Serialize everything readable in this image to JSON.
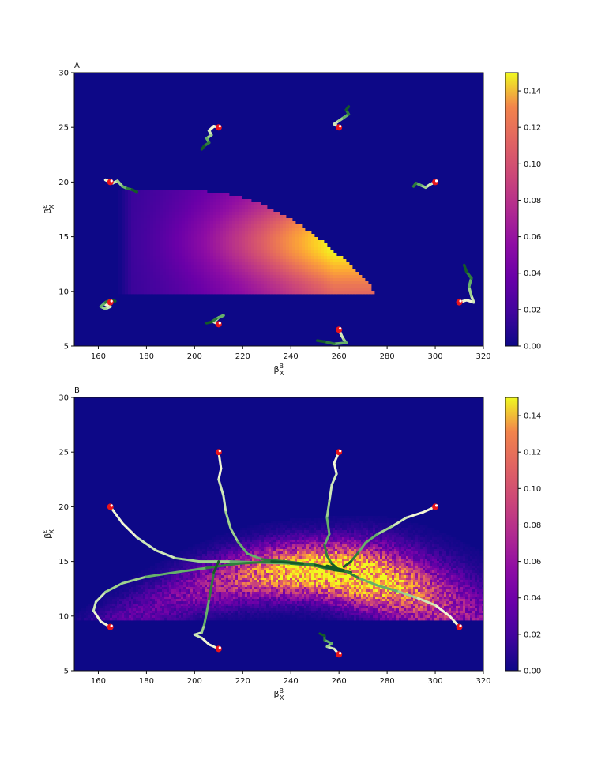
{
  "chart_data": [
    {
      "type": "heatmap",
      "panel_label": "A",
      "title": "",
      "xlabel": "β_X^B",
      "ylabel": "β_X^ε",
      "xlim": [
        150,
        320
      ],
      "ylim": [
        5,
        30
      ],
      "xticks": [
        160,
        180,
        200,
        220,
        240,
        260,
        280,
        300,
        320
      ],
      "yticks": [
        5,
        10,
        15,
        20,
        25,
        30
      ],
      "colorbar": {
        "min": 0.0,
        "max": 0.15,
        "ticks": [
          "0.00",
          "0.02",
          "0.04",
          "0.06",
          "0.08",
          "0.10",
          "0.12",
          "0.14"
        ],
        "colormap": "plasma"
      },
      "density_region": {
        "x_min": 168,
        "x_max": 276,
        "y_min": 9.7,
        "y_max": 19.2,
        "peak": [
          255,
          14.5
        ],
        "peak_value": 0.15
      },
      "trajectories": [
        {
          "start": [
            165,
            20
          ],
          "path": [
            [
              165,
              20
            ],
            [
              163,
              20.2
            ],
            [
              166,
              19.9
            ],
            [
              168,
              20.1
            ],
            [
              170,
              19.6
            ],
            [
              172,
              19.4
            ],
            [
              174,
              19.3
            ],
            [
              176,
              19.1
            ]
          ]
        },
        {
          "start": [
            210,
            25
          ],
          "path": [
            [
              210,
              25
            ],
            [
              208,
              25.1
            ],
            [
              206,
              24.7
            ],
            [
              207,
              24.3
            ],
            [
              205,
              24.0
            ],
            [
              206,
              23.6
            ],
            [
              204,
              23.3
            ],
            [
              203,
              23.0
            ]
          ]
        },
        {
          "start": [
            260,
            25
          ],
          "path": [
            [
              260,
              25
            ],
            [
              258,
              25.3
            ],
            [
              260,
              25.6
            ],
            [
              262,
              25.9
            ],
            [
              264,
              26.2
            ],
            [
              263,
              26.6
            ],
            [
              264,
              26.9
            ]
          ]
        },
        {
          "start": [
            300,
            20
          ],
          "path": [
            [
              300,
              20
            ],
            [
              298,
              19.8
            ],
            [
              296,
              19.5
            ],
            [
              294,
              19.7
            ],
            [
              292,
              19.9
            ],
            [
              291,
              19.6
            ]
          ]
        },
        {
          "start": [
            310,
            9
          ],
          "path": [
            [
              310,
              9
            ],
            [
              313,
              9.2
            ],
            [
              316,
              9.0
            ],
            [
              315,
              9.6
            ],
            [
              314,
              10.4
            ],
            [
              315,
              11.2
            ],
            [
              313,
              11.8
            ],
            [
              312,
              12.4
            ]
          ]
        },
        {
          "start": [
            260,
            6.5
          ],
          "path": [
            [
              260,
              6.5
            ],
            [
              261,
              6.0
            ],
            [
              262,
              5.6
            ],
            [
              263,
              5.3
            ],
            [
              258,
              5.2
            ],
            [
              254,
              5.4
            ],
            [
              251,
              5.5
            ]
          ]
        },
        {
          "start": [
            210,
            7
          ],
          "path": [
            [
              210,
              7
            ],
            [
              208,
              7.2
            ],
            [
              210,
              7.6
            ],
            [
              212,
              7.8
            ],
            [
              209,
              7.5
            ],
            [
              207,
              7.2
            ],
            [
              205,
              7.1
            ]
          ]
        },
        {
          "start": [
            165,
            9
          ],
          "path": [
            [
              165,
              9
            ],
            [
              163,
              8.8
            ],
            [
              165,
              8.6
            ],
            [
              163,
              8.4
            ],
            [
              161,
              8.6
            ],
            [
              163,
              9.0
            ],
            [
              165,
              9.2
            ],
            [
              167,
              9.1
            ]
          ]
        }
      ]
    },
    {
      "type": "heatmap",
      "panel_label": "B",
      "title": "",
      "xlabel": "β_X^B",
      "ylabel": "β_X^ε",
      "xlim": [
        150,
        320
      ],
      "ylim": [
        5,
        30
      ],
      "xticks": [
        160,
        180,
        200,
        220,
        240,
        260,
        280,
        300,
        320
      ],
      "yticks": [
        5,
        10,
        15,
        20,
        25,
        30
      ],
      "colorbar": {
        "min": 0.0,
        "max": 0.15,
        "ticks": [
          "0.00",
          "0.02",
          "0.04",
          "0.06",
          "0.08",
          "0.10",
          "0.12",
          "0.14"
        ],
        "colormap": "plasma"
      },
      "density_region": {
        "x_min": 150,
        "x_max": 320,
        "y_min": 9.7,
        "y_max": 20,
        "peak": [
          255,
          13.8
        ],
        "peak_value": 0.15
      },
      "trajectories": [
        {
          "start": [
            165,
            20
          ],
          "path": [
            [
              165,
              20
            ],
            [
              170,
              18.5
            ],
            [
              176,
              17.2
            ],
            [
              184,
              16.0
            ],
            [
              192,
              15.3
            ],
            [
              202,
              15.0
            ],
            [
              215,
              15.0
            ],
            [
              228,
              14.9
            ],
            [
              240,
              14.8
            ],
            [
              250,
              14.6
            ],
            [
              258,
              14.2
            ],
            [
              265,
              14.0
            ]
          ]
        },
        {
          "start": [
            210,
            25
          ],
          "path": [
            [
              210,
              25
            ],
            [
              211,
              23.5
            ],
            [
              210,
              22.5
            ],
            [
              212,
              21.0
            ],
            [
              213,
              19.5
            ],
            [
              215,
              18.0
            ],
            [
              218,
              16.8
            ],
            [
              222,
              15.7
            ],
            [
              228,
              15.2
            ],
            [
              238,
              15.0
            ],
            [
              250,
              14.7
            ],
            [
              260,
              14.2
            ]
          ]
        },
        {
          "start": [
            260,
            25
          ],
          "path": [
            [
              260,
              25
            ],
            [
              258,
              24.0
            ],
            [
              259,
              23.0
            ],
            [
              257,
              22.0
            ],
            [
              256,
              20.5
            ],
            [
              255,
              19.0
            ],
            [
              256,
              17.5
            ],
            [
              254,
              16.5
            ],
            [
              255,
              15.5
            ],
            [
              257,
              14.8
            ],
            [
              260,
              14.2
            ]
          ]
        },
        {
          "start": [
            300,
            20
          ],
          "path": [
            [
              300,
              20
            ],
            [
              295,
              19.5
            ],
            [
              288,
              19.0
            ],
            [
              282,
              18.2
            ],
            [
              276,
              17.5
            ],
            [
              271,
              16.7
            ],
            [
              268,
              15.8
            ],
            [
              265,
              15.0
            ],
            [
              262,
              14.5
            ]
          ]
        },
        {
          "start": [
            310,
            9
          ],
          "path": [
            [
              310,
              9
            ],
            [
              306,
              10.0
            ],
            [
              300,
              11.0
            ],
            [
              292,
              11.7
            ],
            [
              284,
              12.3
            ],
            [
              276,
              12.8
            ],
            [
              268,
              13.5
            ],
            [
              262,
              14.2
            ],
            [
              255,
              14.6
            ]
          ]
        },
        {
          "start": [
            165,
            9
          ],
          "path": [
            [
              165,
              9
            ],
            [
              161,
              9.5
            ],
            [
              158,
              10.5
            ],
            [
              159,
              11.3
            ],
            [
              163,
              12.2
            ],
            [
              170,
              13.0
            ],
            [
              180,
              13.6
            ],
            [
              192,
              14.0
            ],
            [
              205,
              14.4
            ],
            [
              218,
              14.8
            ],
            [
              232,
              15.0
            ],
            [
              245,
              14.8
            ]
          ]
        },
        {
          "start": [
            210,
            7
          ],
          "path": [
            [
              210,
              7
            ],
            [
              206,
              7.4
            ],
            [
              203,
              8.0
            ],
            [
              200,
              8.3
            ],
            [
              203,
              8.5
            ],
            [
              204,
              9.2
            ],
            [
              205,
              10.3
            ],
            [
              206,
              11.5
            ],
            [
              207,
              12.7
            ],
            [
              208,
              14.0
            ],
            [
              210,
              15.0
            ]
          ]
        },
        {
          "start": [
            260,
            6.5
          ],
          "path": [
            [
              260,
              6.5
            ],
            [
              258,
              7.0
            ],
            [
              255,
              7.2
            ],
            [
              257,
              7.5
            ],
            [
              254,
              7.8
            ],
            [
              254,
              8.2
            ],
            [
              252,
              8.4
            ]
          ]
        }
      ]
    }
  ]
}
